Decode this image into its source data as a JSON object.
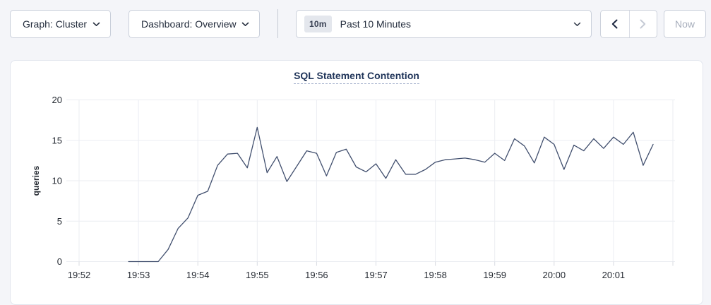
{
  "toolbar": {
    "graph_dropdown": {
      "label": "Graph: Cluster"
    },
    "dashboard_dropdown": {
      "label": "Dashboard: Overview"
    },
    "time_select": {
      "badge": "10m",
      "label": "Past 10 Minutes"
    },
    "now_label": "Now",
    "icons": {
      "chevron_down": "⌄",
      "chevron_left": "‹",
      "chevron_right": "›"
    }
  },
  "colors": {
    "page_background": "#f4f5f9",
    "panel_background": "#ffffff",
    "title_text": "#1f3459",
    "control_text": "#242d3d",
    "disabled_text": "#a6adbb",
    "gridline": "#ebedf2",
    "series_line": "#414f6e"
  },
  "chart_data": {
    "type": "line",
    "title": "SQL Statement Contention",
    "xlabel": "",
    "ylabel": "queries",
    "ylim": [
      0,
      20
    ],
    "y_ticks": [
      0,
      5,
      10,
      15,
      20
    ],
    "x_ticks": [
      "19:52",
      "19:53",
      "19:54",
      "19:55",
      "19:56",
      "19:57",
      "19:58",
      "19:59",
      "20:00",
      "20:01"
    ],
    "grid": true,
    "legend_position": "none",
    "series": [
      {
        "name": "SQL Statement Contention",
        "color": "#414f6e",
        "start": "19:52:50",
        "interval_seconds": 10,
        "values": [
          0,
          0,
          0,
          0,
          1.5,
          4.1,
          5.4,
          8.2,
          8.7,
          11.9,
          13.3,
          13.4,
          11.6,
          16.6,
          11.0,
          13.0,
          9.9,
          11.8,
          13.7,
          13.4,
          10.6,
          13.5,
          13.9,
          11.7,
          11.1,
          12.1,
          10.3,
          12.6,
          10.8,
          10.8,
          11.4,
          12.3,
          12.6,
          12.7,
          12.8,
          12.6,
          12.3,
          13.4,
          12.5,
          15.2,
          14.3,
          12.2,
          15.4,
          14.5,
          11.4,
          14.4,
          13.7,
          15.2,
          14.0,
          15.4,
          14.5,
          16.0,
          11.9,
          14.5
        ]
      }
    ]
  }
}
